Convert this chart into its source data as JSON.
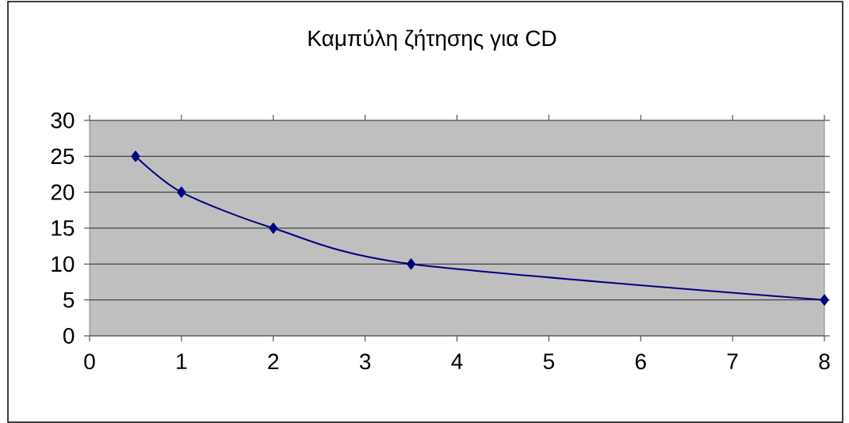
{
  "chart_data": {
    "type": "line",
    "title": "Καμπύλη ζήτησης για CD",
    "x": [
      0.5,
      1,
      2,
      3.5,
      8
    ],
    "series": [
      {
        "color": "#000080",
        "values": [
          25,
          20,
          15,
          10,
          5
        ]
      }
    ],
    "xlim": [
      0,
      8
    ],
    "xticks": [
      0,
      1,
      2,
      3,
      4,
      5,
      6,
      7,
      8
    ],
    "ylim": [
      0,
      30
    ],
    "yticks": [
      0,
      5,
      10,
      15,
      20,
      25,
      30
    ],
    "grid": "y",
    "marker": "diamond",
    "line_style": "solid"
  }
}
